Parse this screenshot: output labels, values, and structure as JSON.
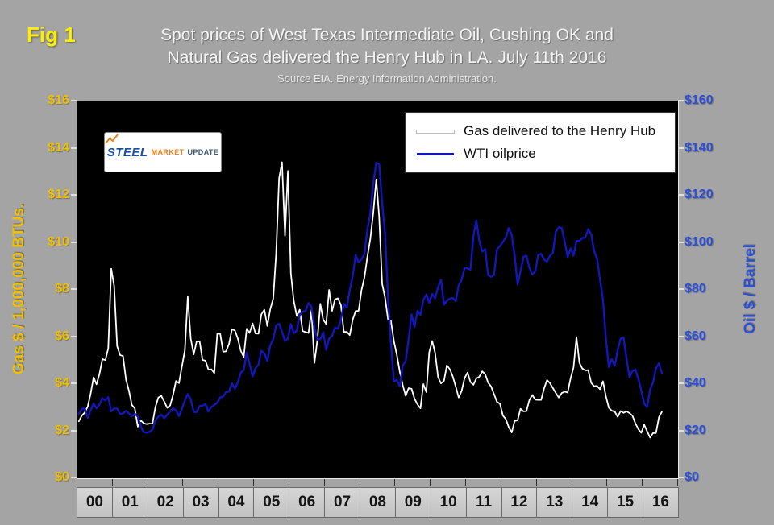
{
  "fig_label": "Fig 1",
  "title": {
    "line1": "Spot prices of West Texas Intermediate Oil, Cushing OK and",
    "line2": "Natural Gas delivered the Henry Hub in LA. July 11th 2016",
    "source": "Source EIA. Energy Information Administration."
  },
  "logo": {
    "steel": "STEEL",
    "market": "MARKET",
    "update": "UPDATE"
  },
  "legend": [
    {
      "label": "Gas delivered to the Henry Hub",
      "color": "#ffffff"
    },
    {
      "label": "WTI oilprice",
      "color": "#1117b8"
    }
  ],
  "left_axis": {
    "title": "Gas $ / 1,000,000 BTUs.",
    "color": "#f0bf00",
    "ticks": [
      "$16",
      "$14",
      "$12",
      "$10",
      "$8",
      "$6",
      "$4",
      "$2",
      "$0"
    ]
  },
  "right_axis": {
    "title": "Oil $ / Barrel",
    "color": "#2b4fd6",
    "ticks": [
      "$160",
      "$140",
      "$120",
      "$100",
      "$80",
      "$60",
      "$40",
      "$20",
      "$0"
    ]
  },
  "x_axis": {
    "years": [
      "00",
      "01",
      "02",
      "03",
      "04",
      "05",
      "06",
      "07",
      "08",
      "09",
      "10",
      "11",
      "12",
      "13",
      "14",
      "15",
      "16"
    ]
  },
  "chart_data": {
    "type": "line",
    "x_unit": "month",
    "x_start": "2000-01",
    "x_end": "2016-07",
    "left_ylim": [
      0,
      16
    ],
    "right_ylim": [
      0,
      160
    ],
    "grid": false,
    "legend_position": "top-right-inside",
    "plot_background": "#000000",
    "series": [
      {
        "name": "Gas delivered to the Henry Hub",
        "axis": "left",
        "units": "$/MMBtu",
        "color": "#ffffff",
        "values": [
          2.42,
          2.66,
          2.79,
          3.04,
          3.59,
          4.29,
          3.99,
          4.43,
          5.06,
          5.02,
          5.52,
          8.9,
          8.17,
          5.61,
          5.23,
          5.19,
          4.19,
          3.72,
          3.11,
          2.97,
          2.19,
          2.46,
          2.34,
          2.3,
          2.32,
          2.32,
          3.03,
          3.43,
          3.5,
          3.26,
          2.99,
          3.09,
          3.55,
          4.13,
          4.04,
          4.74,
          5.43,
          7.71,
          5.93,
          5.26,
          5.81,
          5.82,
          5.03,
          4.99,
          4.62,
          4.63,
          4.47,
          6.13,
          6.14,
          5.37,
          5.39,
          5.71,
          6.33,
          6.27,
          5.93,
          5.41,
          5.15,
          6.35,
          6.17,
          6.58,
          6.15,
          6.14,
          6.96,
          7.16,
          6.47,
          7.18,
          7.63,
          9.53,
          12.75,
          13.42,
          10.3,
          13.05,
          8.69,
          7.54,
          6.89,
          7.16,
          6.25,
          6.21,
          6.17,
          7.14,
          4.9,
          5.85,
          7.41,
          6.73,
          6.55,
          8.0,
          7.11,
          7.6,
          7.64,
          7.35,
          6.22,
          6.22,
          6.08,
          6.74,
          7.1,
          7.11,
          7.99,
          8.54,
          9.41,
          10.18,
          11.27,
          12.69,
          11.09,
          8.26,
          7.67,
          6.74,
          6.68,
          5.82,
          5.24,
          4.52,
          3.96,
          3.5,
          3.83,
          3.8,
          3.38,
          3.14,
          2.97,
          4.0,
          3.66,
          5.35,
          5.83,
          5.32,
          4.29,
          4.03,
          4.14,
          4.8,
          4.63,
          4.32,
          3.89,
          3.43,
          3.71,
          4.25,
          4.49,
          4.09,
          3.97,
          4.24,
          4.31,
          4.54,
          4.42,
          4.06,
          3.9,
          3.57,
          3.24,
          3.17,
          2.67,
          2.51,
          2.17,
          1.95,
          2.43,
          2.46,
          2.95,
          2.84,
          2.85,
          3.32,
          3.54,
          3.34,
          3.33,
          3.33,
          3.81,
          4.17,
          4.04,
          3.83,
          3.62,
          3.43,
          3.62,
          3.68,
          3.64,
          4.24,
          4.71,
          6.0,
          4.9,
          4.66,
          4.58,
          4.59,
          4.05,
          3.91,
          3.92,
          3.78,
          4.12,
          3.48,
          2.99,
          2.87,
          2.83,
          2.61,
          2.85,
          2.78,
          2.84,
          2.77,
          2.66,
          2.34,
          2.09,
          1.93,
          2.28,
          1.99,
          1.73,
          1.92,
          1.92,
          2.59,
          2.82
        ]
      },
      {
        "name": "WTI oilprice",
        "axis": "right",
        "units": "$/barrel",
        "color": "#1117b8",
        "values": [
          27.3,
          29.4,
          29.8,
          25.7,
          28.8,
          31.8,
          29.7,
          31.3,
          33.9,
          33.1,
          34.4,
          28.4,
          29.6,
          29.6,
          27.3,
          27.5,
          28.6,
          27.6,
          26.4,
          27.4,
          26.2,
          22.2,
          19.6,
          19.4,
          19.7,
          20.7,
          24.5,
          26.2,
          27.0,
          25.5,
          27.0,
          28.4,
          29.7,
          28.8,
          26.4,
          29.5,
          33.0,
          35.8,
          33.5,
          28.2,
          28.1,
          30.7,
          30.8,
          31.6,
          28.3,
          30.3,
          31.1,
          32.1,
          34.3,
          34.7,
          36.7,
          36.8,
          40.3,
          38.0,
          40.8,
          44.9,
          45.9,
          53.3,
          48.5,
          43.2,
          46.8,
          48.2,
          54.2,
          53.0,
          49.8,
          56.4,
          59.0,
          65.0,
          65.6,
          62.3,
          58.3,
          59.4,
          65.5,
          61.6,
          62.7,
          69.4,
          70.8,
          71.0,
          74.4,
          73.0,
          63.8,
          58.9,
          59.1,
          62.0,
          54.5,
          59.3,
          60.4,
          64.0,
          63.5,
          67.5,
          74.1,
          72.4,
          79.9,
          85.8,
          94.8,
          91.7,
          93.0,
          95.4,
          105.5,
          112.6,
          125.4,
          133.9,
          133.4,
          116.7,
          104.1,
          76.6,
          57.3,
          41.1,
          41.7,
          39.1,
          47.9,
          49.7,
          59.0,
          69.6,
          64.2,
          71.1,
          69.4,
          75.7,
          78.0,
          74.5,
          78.3,
          76.4,
          81.2,
          84.3,
          73.7,
          75.3,
          76.3,
          76.6,
          75.2,
          81.9,
          84.3,
          89.2,
          89.2,
          88.6,
          102.9,
          109.5,
          100.9,
          96.3,
          97.3,
          86.3,
          85.5,
          86.3,
          97.2,
          98.6,
          100.3,
          102.2,
          106.2,
          103.3,
          94.7,
          82.3,
          87.9,
          94.1,
          94.5,
          89.5,
          86.5,
          87.9,
          94.8,
          95.3,
          92.9,
          92.0,
          94.5,
          95.8,
          104.7,
          106.6,
          106.3,
          100.5,
          93.9,
          97.6,
          94.6,
          100.8,
          100.8,
          102.1,
          102.2,
          105.8,
          103.6,
          96.5,
          93.2,
          84.4,
          75.8,
          59.3,
          47.2,
          50.6,
          47.8,
          54.5,
          59.3,
          59.8,
          50.9,
          42.9,
          45.5,
          46.2,
          42.4,
          37.2,
          31.7,
          30.3,
          37.6,
          40.8,
          46.7,
          48.8,
          44.7
        ]
      }
    ]
  }
}
